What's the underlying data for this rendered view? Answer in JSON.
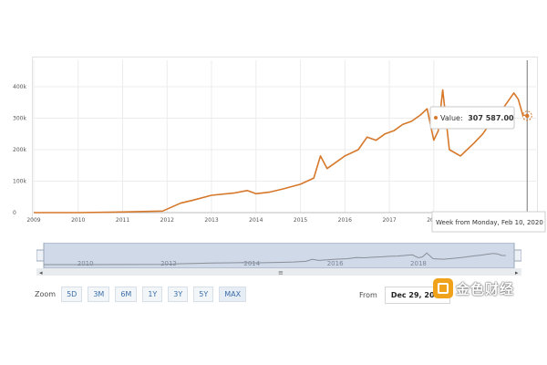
{
  "chart": {
    "y_axis_labels": [
      "0",
      "100k",
      "200k",
      "300k",
      "400k"
    ],
    "x_axis_labels": [
      "2009",
      "2010",
      "2011",
      "2012",
      "2013",
      "2014",
      "2015",
      "2016",
      "2017",
      "2018"
    ],
    "tooltip_label": "Value:",
    "tooltip_value": "307 587.00",
    "hover_date": "Week from Monday, Feb 10, 2020",
    "line_color": "#d6782a"
  },
  "chart_data": {
    "type": "line",
    "title": "",
    "xlabel": "",
    "ylabel": "",
    "ylim": [
      0,
      400000
    ],
    "xlim": [
      2009,
      2020.3
    ],
    "grid": true,
    "series": [
      {
        "x": [
          2009,
          2010,
          2011,
          2011.9,
          2012.3,
          2012.6,
          2013.0,
          2013.5,
          2013.8,
          2014.0,
          2014.3,
          2014.6,
          2015.0,
          2015.3,
          2015.45,
          2015.6,
          2015.8,
          2016.0,
          2016.3,
          2016.5,
          2016.7,
          2016.9,
          2017.1,
          2017.3,
          2017.5,
          2017.7,
          2017.85,
          2018.0,
          2018.1,
          2018.2,
          2018.35,
          2018.6,
          2018.9,
          2019.1,
          2019.3,
          2019.5,
          2019.65,
          2019.8,
          2019.9,
          2020.0,
          2020.1
        ],
        "y": [
          0,
          0,
          2000,
          5000,
          30000,
          40000,
          55000,
          62000,
          70000,
          60000,
          65000,
          75000,
          90000,
          110000,
          180000,
          140000,
          160000,
          180000,
          200000,
          240000,
          230000,
          250000,
          260000,
          280000,
          290000,
          310000,
          330000,
          230000,
          260000,
          390000,
          200000,
          180000,
          220000,
          250000,
          290000,
          320000,
          350000,
          380000,
          360000,
          310000,
          307587
        ]
      }
    ]
  },
  "navigator": {
    "labels": [
      "2010",
      "2012",
      "2014",
      "2016",
      "2018"
    ],
    "scroll_left": "◂",
    "scroll_right": "▸",
    "center_grip": "≡"
  },
  "range_selector": {
    "zoom_label": "Zoom",
    "buttons": [
      "5D",
      "3M",
      "6M",
      "1Y",
      "3Y",
      "5Y",
      "MAX"
    ],
    "from_label": "From",
    "from_value": "Dec 29, 2008"
  },
  "watermark": {
    "text": "金色财经"
  }
}
